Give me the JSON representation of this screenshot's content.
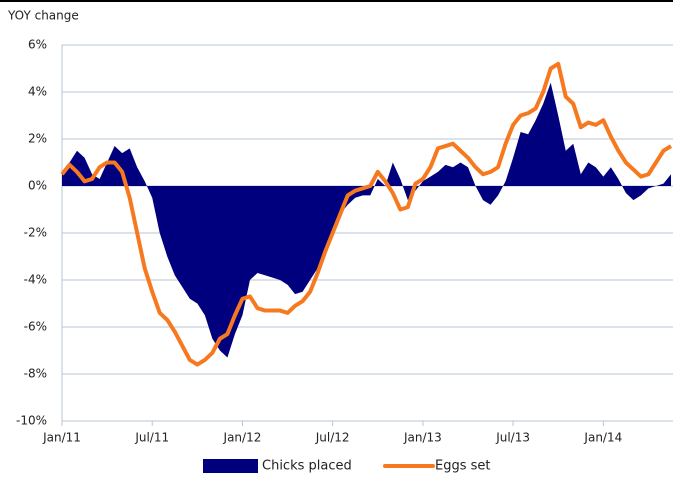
{
  "chart_data": {
    "type": "line",
    "y_label": "YOY change",
    "categories": [
      "Jan/11",
      null,
      null,
      null,
      null,
      null,
      null,
      null,
      null,
      null,
      null,
      null,
      "Jul/11",
      null,
      null,
      null,
      null,
      null,
      null,
      null,
      null,
      null,
      null,
      null,
      "Jan/12",
      null,
      null,
      null,
      null,
      null,
      null,
      null,
      null,
      null,
      null,
      null,
      "Jul/12",
      null,
      null,
      null,
      null,
      null,
      null,
      null,
      null,
      null,
      null,
      null,
      "Jan/13",
      null,
      null,
      null,
      null,
      null,
      null,
      null,
      null,
      null,
      null,
      null,
      "Jul/13",
      null,
      null,
      null,
      null,
      null,
      null,
      null,
      null,
      null,
      null,
      null,
      "Jan/14",
      null,
      null,
      null,
      null,
      null,
      null,
      null,
      null,
      null
    ],
    "series": [
      {
        "name": "Chicks placed",
        "color": "#00007f",
        "style": "area",
        "values": [
          0.5,
          1.0,
          1.5,
          1.2,
          0.5,
          0.3,
          1.0,
          1.7,
          1.4,
          1.6,
          0.8,
          0.2,
          -0.5,
          -2.0,
          -3.0,
          -3.8,
          -4.3,
          -4.8,
          -5.0,
          -5.5,
          -6.5,
          -7.0,
          -7.3,
          -6.3,
          -5.5,
          -4.0,
          -3.7,
          -3.8,
          -3.9,
          -4.0,
          -4.2,
          -4.6,
          -4.5,
          -4.0,
          -3.5,
          -2.8,
          -2.0,
          -1.2,
          -0.8,
          -0.5,
          -0.4,
          -0.4,
          0.3,
          0.0,
          1.0,
          0.3,
          -0.6,
          -0.2,
          0.2,
          0.4,
          0.6,
          0.9,
          0.8,
          1.0,
          0.8,
          0.0,
          -0.6,
          -0.8,
          -0.4,
          0.2,
          1.2,
          2.3,
          2.2,
          2.8,
          3.5,
          4.4,
          3.0,
          1.5,
          1.8,
          0.5,
          1.0,
          0.8,
          0.4,
          0.8,
          0.3,
          -0.3,
          -0.6,
          -0.4,
          -0.1,
          0.0,
          0.1,
          0.5
        ]
      },
      {
        "name": "Eggs set",
        "color": "#f7791f",
        "style": "line",
        "values": [
          0.5,
          0.9,
          0.6,
          0.2,
          0.3,
          0.8,
          1.0,
          1.0,
          0.6,
          -0.5,
          -2.0,
          -3.5,
          -4.5,
          -5.4,
          -5.7,
          -6.2,
          -6.8,
          -7.4,
          -7.6,
          -7.4,
          -7.1,
          -6.5,
          -6.3,
          -5.5,
          -4.8,
          -4.7,
          -5.2,
          -5.3,
          -5.3,
          -5.3,
          -5.4,
          -5.1,
          -4.9,
          -4.5,
          -3.7,
          -2.8,
          -2.0,
          -1.2,
          -0.4,
          -0.2,
          -0.1,
          0.0,
          0.6,
          0.2,
          -0.3,
          -1.0,
          -0.9,
          0.1,
          0.3,
          0.8,
          1.6,
          1.7,
          1.8,
          1.5,
          1.2,
          0.8,
          0.5,
          0.6,
          0.8,
          1.8,
          2.6,
          3.0,
          3.1,
          3.3,
          4.0,
          5.0,
          5.2,
          3.8,
          3.5,
          2.5,
          2.7,
          2.6,
          2.8,
          2.1,
          1.5,
          1.0,
          0.7,
          0.4,
          0.5,
          1.0,
          1.5,
          1.7
        ]
      }
    ],
    "ylim": [
      -10,
      6
    ],
    "yticks": [
      {
        "value": -10,
        "label": "-10%"
      },
      {
        "value": -8,
        "label": "-8%"
      },
      {
        "value": -6,
        "label": "-6%"
      },
      {
        "value": -4,
        "label": "-4%"
      },
      {
        "value": -2,
        "label": "-2%"
      },
      {
        "value": 0,
        "label": "0%"
      },
      {
        "value": 2,
        "label": "2%"
      },
      {
        "value": 4,
        "label": "4%"
      },
      {
        "value": 6,
        "label": "6%"
      }
    ],
    "grid": true,
    "legend": "bottom"
  }
}
